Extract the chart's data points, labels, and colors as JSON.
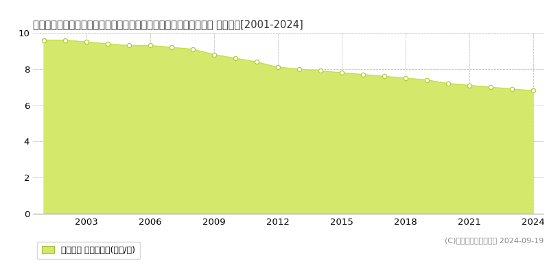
{
  "title": "長崎県西彼杯郡時津町西時津郷字大屋平１０９４番３外　基準地価 地価推移[2001-2024]",
  "years": [
    2001,
    2002,
    2003,
    2004,
    2005,
    2006,
    2007,
    2008,
    2009,
    2010,
    2011,
    2012,
    2013,
    2014,
    2015,
    2016,
    2017,
    2018,
    2019,
    2020,
    2021,
    2022,
    2023,
    2024
  ],
  "values": [
    9.6,
    9.6,
    9.5,
    9.4,
    9.3,
    9.3,
    9.2,
    9.1,
    8.8,
    8.6,
    8.4,
    8.1,
    8.0,
    7.9,
    7.8,
    7.7,
    7.6,
    7.5,
    7.4,
    7.2,
    7.1,
    7.0,
    6.9,
    6.8
  ],
  "fill_color": "#d4e96b",
  "line_color": "#c8dc50",
  "marker_facecolor": "#ffffff",
  "marker_edgecolor": "#b8cc40",
  "ylim": [
    0,
    10
  ],
  "yticks": [
    0,
    2,
    4,
    6,
    8,
    10
  ],
  "xticks": [
    2003,
    2006,
    2009,
    2012,
    2015,
    2018,
    2021,
    2024
  ],
  "xlim_left": 2000.5,
  "xlim_right": 2024.5,
  "grid_color": "#bbbbbb",
  "background_color": "#ffffff",
  "legend_label": "基準地価 平均坪単価(万円/坪)",
  "copyright": "(C)土地価格ドットコム 2024-09-19",
  "title_fontsize": 10.5,
  "axis_fontsize": 9.5,
  "legend_fontsize": 9
}
